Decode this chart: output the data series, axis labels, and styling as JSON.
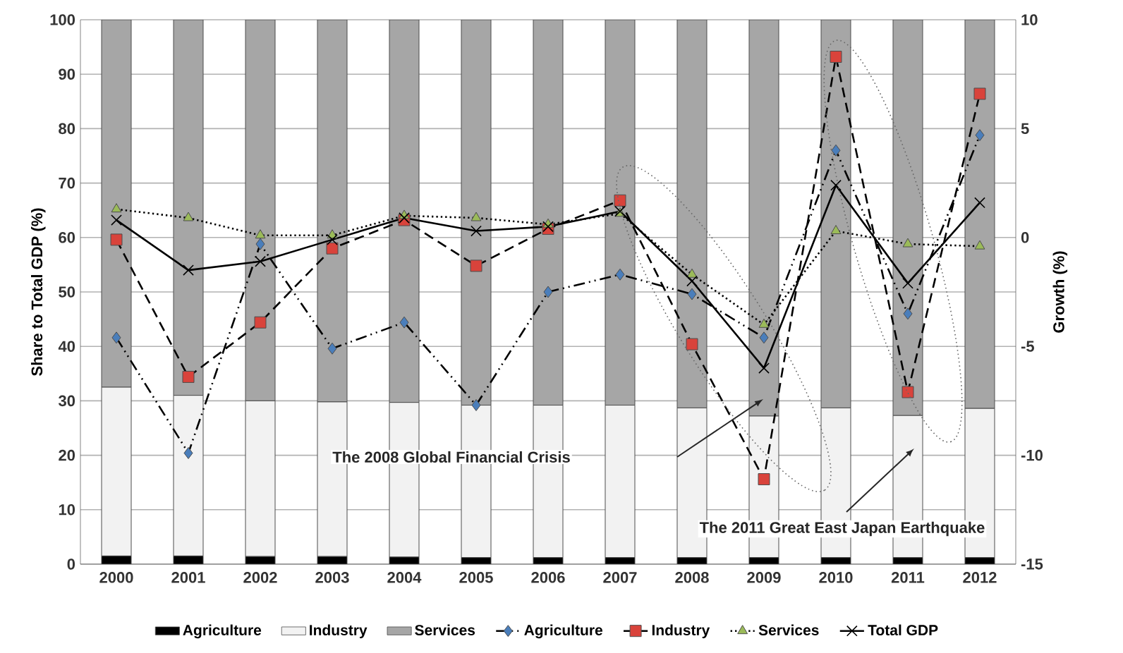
{
  "chart_data": {
    "type": "bar",
    "stacked": true,
    "ylabel": "Share to Total GDP (%)",
    "y2label": "Growth (%)",
    "categories": [
      "2000",
      "2001",
      "2002",
      "2003",
      "2004",
      "2005",
      "2006",
      "2007",
      "2008",
      "2009",
      "2010",
      "2011",
      "2012"
    ],
    "ylim": [
      0,
      100
    ],
    "yticks": [
      0,
      10,
      20,
      30,
      40,
      50,
      60,
      70,
      80,
      90,
      100
    ],
    "y2lim": [
      -15,
      10
    ],
    "y2ticks": [
      -15,
      -10,
      -5,
      0,
      5,
      10
    ],
    "grid": "y",
    "legend": "bottom",
    "series": [
      {
        "name": "Agriculture",
        "color": "#000000",
        "values": [
          1.5,
          1.5,
          1.4,
          1.4,
          1.3,
          1.2,
          1.2,
          1.2,
          1.2,
          1.2,
          1.2,
          1.2,
          1.2
        ]
      },
      {
        "name": "Industry",
        "color": "#f2f2f2",
        "values": [
          31,
          29.5,
          28.6,
          28.4,
          28.4,
          28,
          28,
          28,
          27.5,
          26,
          27.5,
          26.1,
          27.4
        ]
      },
      {
        "name": "Services",
        "color": "#a6a6a6",
        "values": [
          67.5,
          69,
          70,
          70.2,
          70.3,
          70.8,
          70.8,
          70.8,
          71.3,
          72.8,
          71.3,
          72.7,
          71.4
        ]
      },
      {
        "name": "Agriculture",
        "type": "line",
        "axis": "y2",
        "color": "#4a7ebb",
        "marker": "diamond",
        "line_style": "dashdotted",
        "values": [
          -4.6,
          -9.9,
          -0.3,
          -5.1,
          -3.9,
          -7.7,
          -2.5,
          -1.7,
          -2.6,
          -4.6,
          4.0,
          -3.5,
          4.7
        ]
      },
      {
        "name": "Industry",
        "type": "line",
        "axis": "y2",
        "color": "#d9433b",
        "marker": "square",
        "line_style": "dashed",
        "values": [
          -0.1,
          -6.4,
          -3.9,
          -0.5,
          0.8,
          -1.3,
          0.4,
          1.7,
          -4.9,
          -11.1,
          8.3,
          -7.1,
          6.6
        ]
      },
      {
        "name": "Services",
        "type": "line",
        "axis": "y2",
        "color": "#9bbb59",
        "marker": "triangle",
        "line_style": "dotted",
        "values": [
          1.3,
          0.9,
          0.1,
          0.1,
          1.0,
          0.9,
          0.6,
          1.1,
          -1.7,
          -4.0,
          0.3,
          -0.3,
          -0.4
        ]
      },
      {
        "name": "Total GDP",
        "type": "line",
        "axis": "y2",
        "color": "#000000",
        "marker": "cross",
        "line_style": "solid",
        "values": [
          0.8,
          -1.5,
          -1.1,
          -0.1,
          0.9,
          0.3,
          0.5,
          1.2,
          -2.0,
          -6.0,
          2.4,
          -2.1,
          1.6
        ]
      }
    ],
    "annotations": [
      "The 2008 Global Financial Crisis",
      "The 2011 Great East Japan Earthquake"
    ]
  }
}
